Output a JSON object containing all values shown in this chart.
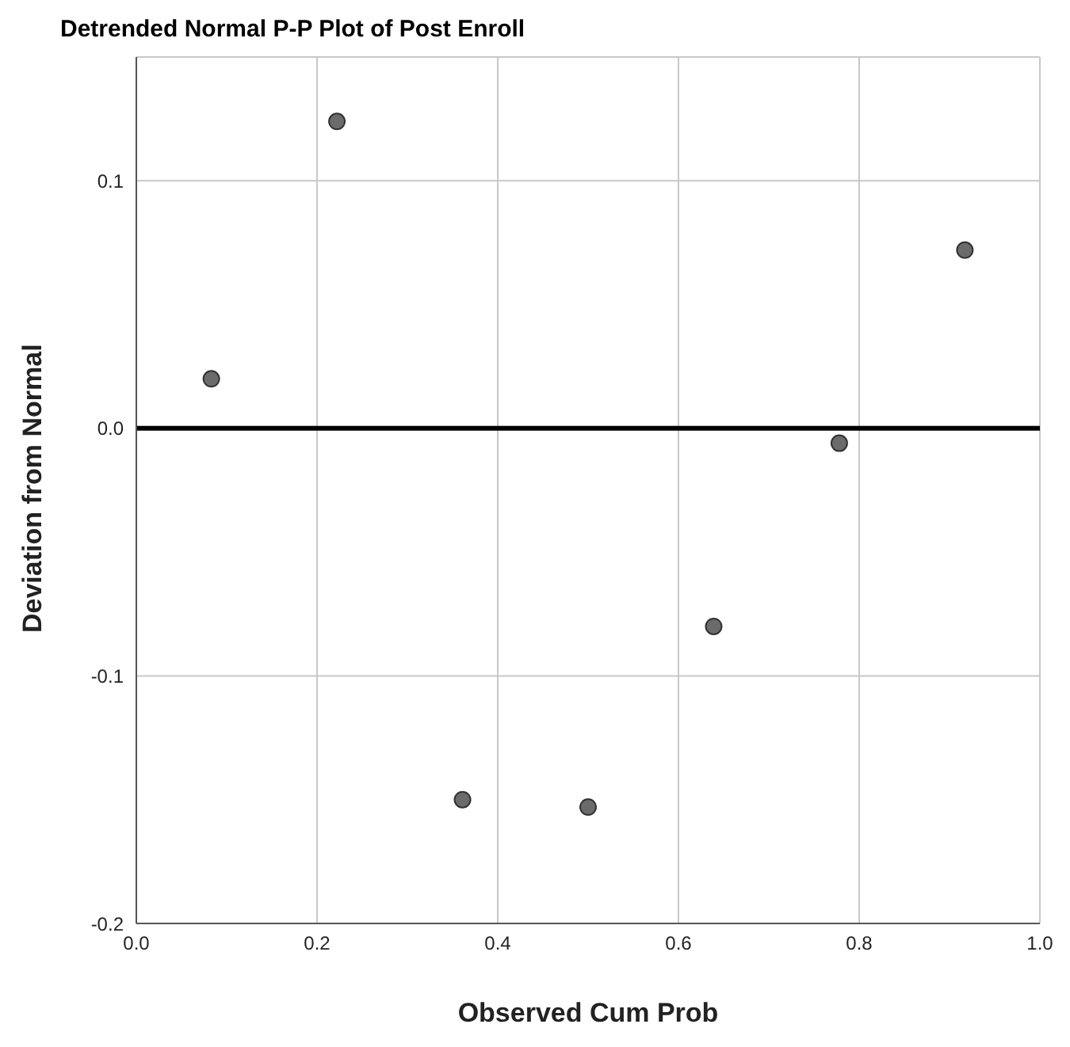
{
  "chart_data": {
    "type": "scatter",
    "title": "Detrended Normal P-P Plot of Post Enroll",
    "xlabel": "Observed Cum Prob",
    "ylabel": "Deviation from Normal",
    "x": [
      0.083,
      0.222,
      0.361,
      0.5,
      0.639,
      0.778,
      0.917
    ],
    "series": [
      {
        "color": "#6b6b6b",
        "values": [
          0.02,
          0.124,
          -0.15,
          -0.153,
          -0.08,
          -0.006,
          0.072
        ]
      }
    ],
    "xlim": [
      0,
      1
    ],
    "xticks": [
      {
        "value": 0,
        "label": "0.0"
      },
      {
        "value": 0.2,
        "label": "0.2"
      },
      {
        "value": 0.4,
        "label": "0.4"
      },
      {
        "value": 0.6,
        "label": "0.6"
      },
      {
        "value": 0.8,
        "label": "0.8"
      },
      {
        "value": 1,
        "label": "1.0"
      }
    ],
    "ylim": [
      -0.2,
      0.15
    ],
    "yticks": [
      {
        "value": -0.2,
        "label": "-0.2"
      },
      {
        "value": -0.1,
        "label": "-0.1"
      },
      {
        "value": 0,
        "label": "0.0"
      },
      {
        "value": 0.1,
        "label": "0.1"
      }
    ],
    "grid": true,
    "marker": "circle",
    "ref_lines": [
      {
        "axis": "y",
        "value": 0,
        "color": "#000000"
      }
    ]
  }
}
